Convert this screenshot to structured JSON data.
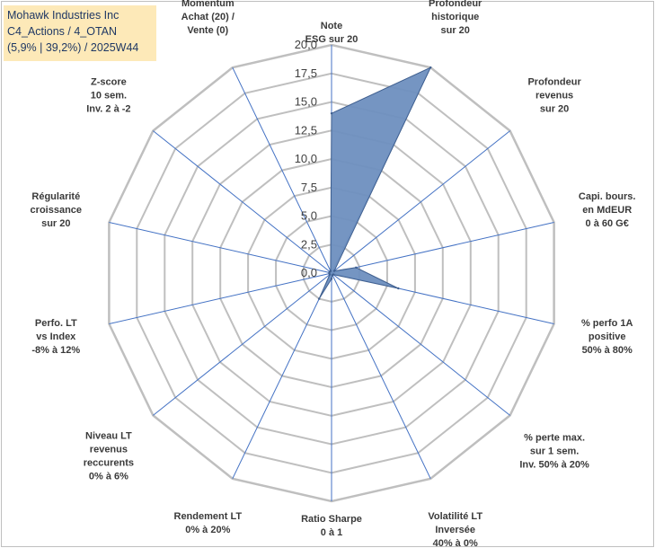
{
  "title_box": {
    "line1": "Mohawk Industries Inc",
    "line2": "C4_Actions / 4_OTAN",
    "line3": "(5,9% | 39,2%) / 2025W44"
  },
  "colors": {
    "grid": "#bfbfbf",
    "spoke": "#4472c4",
    "fill": "#6e8fbf",
    "fill_stroke": "#3f5f8f",
    "title_bg": "#fde9b8",
    "title_text": "#1f3864"
  },
  "chart_data": {
    "type": "radar",
    "rmin": 0,
    "rmax": 20,
    "tick_step": 2.5,
    "ticks": [
      "0,0",
      "2,5",
      "5,0",
      "7,5",
      "10,0",
      "12,5",
      "15,0",
      "17,5",
      "20,0"
    ],
    "axes": [
      [
        "Note",
        "ESG sur 20"
      ],
      [
        "Profondeur",
        "historique",
        "sur 20"
      ],
      [
        "Profondeur",
        "revenus",
        "sur 20"
      ],
      [
        "Capi. bours.",
        "en MdEUR",
        "0 à 60 G€"
      ],
      [
        "% perfo 1A",
        "positive",
        "50% à 80%"
      ],
      [
        "% perte max.",
        "sur 1 sem.",
        "Inv. 50% à 20%"
      ],
      [
        "Volatilité LT",
        "Inversée",
        "40% à 0%"
      ],
      [
        "Ratio Sharpe",
        "0 à 1"
      ],
      [
        "Rendement LT",
        "0% à 20%"
      ],
      [
        "Niveau LT",
        "revenus",
        "reccurents",
        "0% à 6%"
      ],
      [
        "Perfo. LT",
        "vs Index",
        "-8% à 12%"
      ],
      [
        "Régularité",
        "croissance",
        "sur 20"
      ],
      [
        "Z-score",
        "10 sem.",
        "Inv. 2 à -2"
      ],
      [
        "Momentum",
        "Achat (20) /",
        "Vente (0)"
      ]
    ],
    "values": [
      14.0,
      20.0,
      0.3,
      2.2,
      6.0,
      0.2,
      0.2,
      0.5,
      2.5,
      0.2,
      0.2,
      0.2,
      0.2,
      0.2
    ]
  }
}
